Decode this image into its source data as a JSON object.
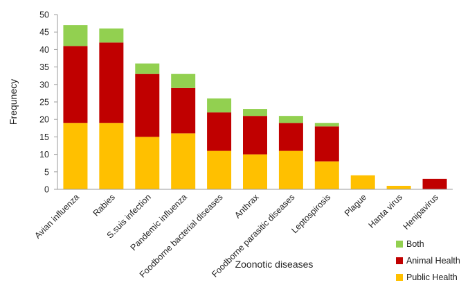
{
  "chart_data": {
    "type": "bar",
    "stacked": true,
    "categories": [
      "Avian influenza",
      "Rabies",
      "S.suis infection",
      "Pandemic influenza",
      "Foodborne bacterial diseases",
      "Anthrax",
      "Foodborne parasitic diseases",
      "Leptospirosis",
      "Plague",
      "Hanta virus",
      "Henipavirus"
    ],
    "series": [
      {
        "name": "Public Health",
        "color": "#FFC000",
        "values": [
          19,
          19,
          15,
          16,
          11,
          10,
          11,
          8,
          4,
          1,
          0
        ]
      },
      {
        "name": "Animal Health",
        "color": "#C00000",
        "values": [
          22,
          23,
          18,
          13,
          11,
          11,
          8,
          10,
          0,
          0,
          3
        ]
      },
      {
        "name": "Both",
        "color": "#92D050",
        "values": [
          6,
          4,
          3,
          4,
          4,
          2,
          2,
          1,
          0,
          0,
          0
        ]
      }
    ],
    "legend_order": [
      "Both",
      "Animal Health",
      "Public Health"
    ],
    "legend_position": "bottom-right",
    "xlabel": "Zoonotic diseases",
    "ylabel": "Frequnecy",
    "ylim": [
      0,
      50
    ],
    "yticks": [
      0,
      5,
      10,
      15,
      20,
      25,
      30,
      35,
      40,
      45,
      50
    ],
    "grid": false
  }
}
